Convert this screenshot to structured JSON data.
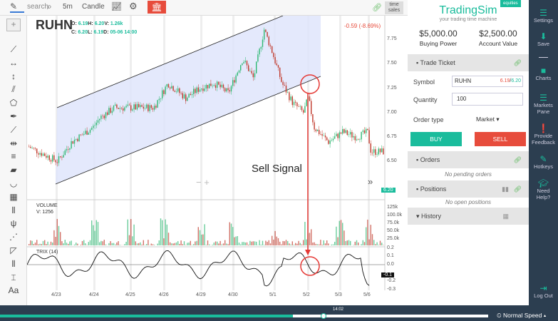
{
  "toolbar": {
    "search_placeholder": "search",
    "interval": "5m",
    "chart_type": "Candle",
    "time_sales": "time\nsales"
  },
  "chart": {
    "symbol": "RUHN",
    "ohlc": {
      "o": "6.19",
      "h": "6.20",
      "v": "1.26k",
      "c": "6.20",
      "l": "6.19",
      "d": "05-06 14:00"
    },
    "change": "-0.59 (-8.69%)",
    "last_price": "6.20",
    "annotation": "Sell Signal",
    "price_ticks": [
      "7.75",
      "7.50",
      "7.25",
      "7.00",
      "6.75",
      "6.50"
    ],
    "volume_label": "VOLUME",
    "volume_value": "V: 1256",
    "volume_ticks": [
      "125k",
      "100.0k",
      "75.0k",
      "50.0k",
      "25.0k"
    ],
    "trix_label": "TRIX (14)",
    "trix_ticks": [
      "0.2",
      "0.1",
      "0.0",
      "-0.2",
      "-0.3"
    ],
    "trix_value": "-0.1",
    "dates": [
      "4/23",
      "4/24",
      "4/25",
      "4/26",
      "4/29",
      "4/30",
      "5/1",
      "5/2",
      "5/3",
      "5/6"
    ],
    "colors": {
      "up": "#2eb872",
      "down": "#c0392b",
      "signal": "#e53935",
      "channel": "#dde4fb"
    }
  },
  "panel": {
    "brand": "TradingSim",
    "badge": "equities",
    "tagline": "your trading time machine",
    "buying_power": "$5,000.00",
    "buying_power_label": "Buying Power",
    "account_value": "$2,500.00",
    "account_value_label": "Account Value",
    "trade_ticket": "Trade Ticket",
    "symbol_label": "Symbol",
    "symbol": "RUHN",
    "bid": "6.19",
    "ask": "6.20",
    "quantity_label": "Quantity",
    "quantity": "100",
    "order_type_label": "Order type",
    "order_type": "Market",
    "buy": "BUY",
    "sell": "SELL",
    "orders": "Orders",
    "orders_empty": "No pending orders",
    "positions": "Positions",
    "positions_empty": "No open positions",
    "history": "History"
  },
  "sidebar": [
    "Settings",
    "Save",
    "Charts",
    "Markets Pane",
    "Provide Feedback",
    "Hotkeys",
    "Need Help?",
    "Log Out"
  ],
  "bottom": {
    "time": "14:02",
    "speed": "Normal Speed",
    "progress": 0.6
  }
}
